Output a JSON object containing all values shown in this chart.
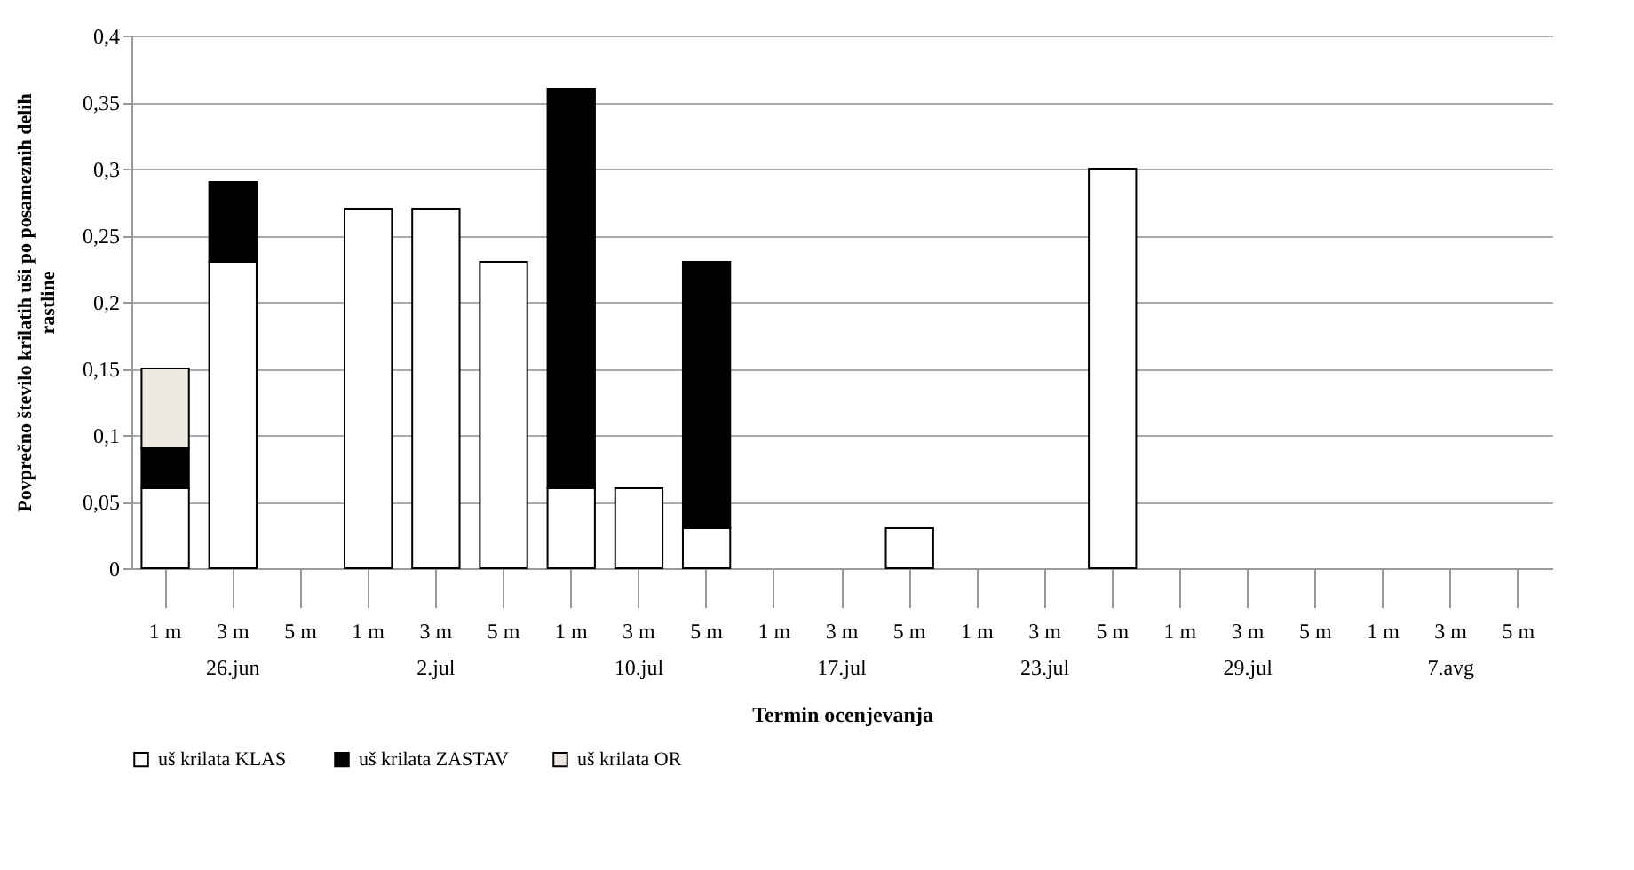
{
  "chart_data": {
    "type": "bar",
    "stacked": true,
    "categories": [
      "1 m",
      "3 m",
      "5 m",
      "1 m",
      "3 m",
      "5 m",
      "1 m",
      "3 m",
      "5 m",
      "1 m",
      "3 m",
      "5 m",
      "1 m",
      "3 m",
      "5 m",
      "1 m",
      "3 m",
      "5 m",
      "1 m",
      "3 m",
      "5 m"
    ],
    "annotations": [
      "26.jun",
      "2.jul",
      "10.jul",
      "17.jul",
      "23.jul",
      "29.jul",
      "7.avg"
    ],
    "xlabel": "Termin ocenjevanja",
    "ylabel": "Povprečno  število krilatih uši po posameznih  delih rastline",
    "ylim": [
      0,
      0.4
    ],
    "yticks": [
      {
        "value": 0,
        "label": "0"
      },
      {
        "value": 0.05,
        "label": "0,05"
      },
      {
        "value": 0.1,
        "label": "0,1"
      },
      {
        "value": 0.15,
        "label": "0,15"
      },
      {
        "value": 0.2,
        "label": "0,2"
      },
      {
        "value": 0.25,
        "label": "0,25"
      },
      {
        "value": 0.3,
        "label": "0,3"
      },
      {
        "value": 0.35,
        "label": "0,35"
      },
      {
        "value": 0.4,
        "label": "0,4"
      }
    ],
    "grid": "y",
    "legend": "bottom",
    "series": [
      {
        "name": "uš krilata  KLAS",
        "color": "#ffffff",
        "values": [
          0.06,
          0.23,
          0,
          0.27,
          0.27,
          0.23,
          0.06,
          0.06,
          0.03,
          0,
          0,
          0.03,
          0,
          0,
          0.3,
          0,
          0,
          0,
          0,
          0,
          0
        ]
      },
      {
        "name": "uš krilata ZASTAV",
        "color": "#000000",
        "values": [
          0.03,
          0.06,
          0,
          0,
          0,
          0,
          0.3,
          0,
          0.2,
          0,
          0,
          0,
          0,
          0,
          0,
          0,
          0,
          0,
          0,
          0,
          0
        ]
      },
      {
        "name": "uš krilata OR",
        "color": "#ece9e0",
        "values": [
          0.06,
          0,
          0,
          0,
          0,
          0,
          0,
          0,
          0,
          0,
          0,
          0,
          0,
          0,
          0,
          0,
          0,
          0,
          0,
          0,
          0
        ]
      }
    ]
  }
}
